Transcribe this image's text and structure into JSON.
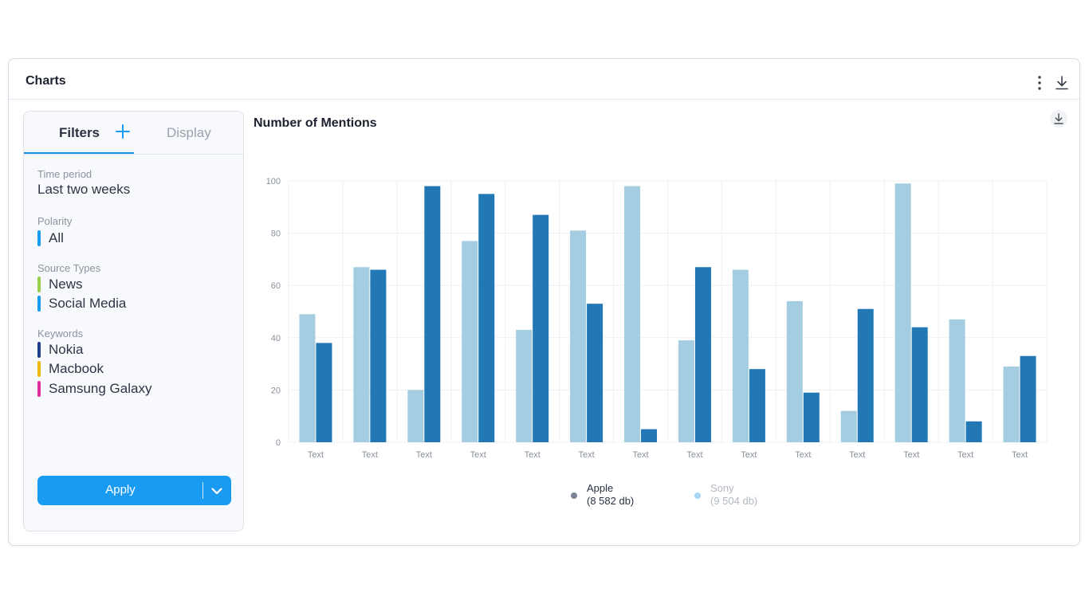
{
  "card": {
    "title": "Charts"
  },
  "filters": {
    "tab_filters": "Filters",
    "tab_display": "Display",
    "time_period": {
      "label": "Time period",
      "value": "Last two weeks"
    },
    "polarity": {
      "label": "Polarity",
      "items": [
        {
          "text": "All",
          "color": "#1a9bf3"
        }
      ]
    },
    "source_types": {
      "label": "Source Types",
      "items": [
        {
          "text": "News",
          "color": "#9bd04a"
        },
        {
          "text": "Social Media",
          "color": "#1a9bf3"
        }
      ]
    },
    "keywords": {
      "label": "Keywords",
      "items": [
        {
          "text": "Nokia",
          "color": "#1e3f8f"
        },
        {
          "text": "Macbook",
          "color": "#f5b800"
        },
        {
          "text": "Samsung Galaxy",
          "color": "#e02d9e"
        }
      ]
    },
    "apply_label": "Apply"
  },
  "chart_data": {
    "type": "bar",
    "title": "Number of Mentions",
    "categories": [
      "Text",
      "Text",
      "Text",
      "Text",
      "Text",
      "Text",
      "Text",
      "Text",
      "Text",
      "Text",
      "Text",
      "Text",
      "Text",
      "Text"
    ],
    "ylim": [
      0,
      100
    ],
    "yticks": [
      0,
      20,
      40,
      60,
      80,
      100
    ],
    "grid": true,
    "legend_position": "bottom",
    "series": [
      {
        "name": "Sony",
        "count_label": "(9 504 db)",
        "color": "#a5cde2",
        "values": [
          49,
          67,
          20,
          77,
          43,
          81,
          98,
          39,
          66,
          54,
          12,
          99,
          47,
          29
        ]
      },
      {
        "name": "Apple",
        "count_label": "(8 582 db)",
        "color": "#2178b4",
        "values": [
          38,
          66,
          98,
          95,
          87,
          53,
          5,
          67,
          28,
          19,
          51,
          44,
          8,
          33
        ]
      }
    ],
    "legend": [
      {
        "name": "Apple",
        "count": "(8 582 db)",
        "dot_color": "#7b8496",
        "text_color": "#2a3142"
      },
      {
        "name": "Sony",
        "count": "(9 504 db)",
        "dot_color": "#a8d6f5",
        "text_color": "#b3b8c2"
      }
    ]
  }
}
